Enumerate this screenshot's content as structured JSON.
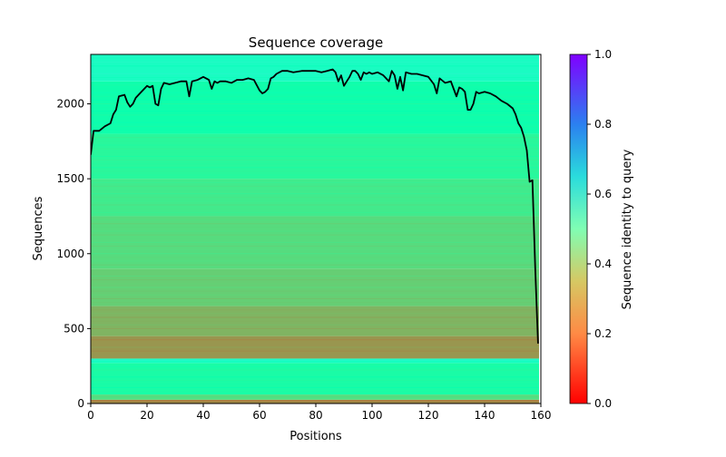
{
  "chart_data": {
    "type": "heatmap",
    "title": "Sequence coverage",
    "xlabel": "Positions",
    "ylabel": "Sequences",
    "xlim": [
      0,
      160
    ],
    "ylim": [
      0,
      2330
    ],
    "x_ticks": [
      "0",
      "20",
      "40",
      "60",
      "80",
      "100",
      "120",
      "140",
      "160"
    ],
    "y_ticks": [
      "0",
      "500",
      "1000",
      "1500",
      "2000"
    ],
    "colorbar": {
      "label": "Sequence identity to query",
      "range": [
        0.0,
        1.0
      ],
      "ticks": [
        "0.0",
        "0.2",
        "0.4",
        "0.6",
        "0.8",
        "1.0"
      ],
      "colormap": "rainbow_r"
    },
    "identity_bands": [
      {
        "y_from": 0,
        "y_to": 25,
        "identity": 0.17
      },
      {
        "y_from": 25,
        "y_to": 60,
        "identity": 0.33
      },
      {
        "y_from": 60,
        "y_to": 270,
        "identity": 0.45
      },
      {
        "y_from": 270,
        "y_to": 300,
        "identity": 0.55
      },
      {
        "y_from": 300,
        "y_to": 450,
        "identity": 0.2
      },
      {
        "y_from": 450,
        "y_to": 650,
        "identity": 0.25
      },
      {
        "y_from": 650,
        "y_to": 900,
        "identity": 0.3
      },
      {
        "y_from": 900,
        "y_to": 1250,
        "identity": 0.33
      },
      {
        "y_from": 1250,
        "y_to": 1500,
        "identity": 0.37
      },
      {
        "y_from": 1500,
        "y_to": 1800,
        "identity": 0.42
      },
      {
        "y_from": 1800,
        "y_to": 2150,
        "identity": 0.47
      },
      {
        "y_from": 2150,
        "y_to": 2330,
        "identity": 0.55
      }
    ],
    "coverage_line": {
      "name": "Coverage",
      "color": "#000000",
      "x": [
        0,
        1,
        3,
        5,
        7,
        8,
        9,
        10,
        12,
        13,
        14,
        15,
        16,
        18,
        19,
        20,
        21,
        22,
        23,
        24,
        25,
        26,
        28,
        30,
        32,
        34,
        35,
        36,
        38,
        40,
        41,
        42,
        43,
        44,
        45,
        46,
        48,
        50,
        52,
        54,
        56,
        58,
        60,
        61,
        62,
        63,
        64,
        65,
        66,
        68,
        70,
        72,
        75,
        78,
        80,
        82,
        84,
        86,
        87,
        88,
        89,
        90,
        91,
        92,
        93,
        94,
        95,
        96,
        97,
        98,
        99,
        100,
        102,
        104,
        106,
        107,
        108,
        109,
        110,
        111,
        112,
        114,
        116,
        118,
        120,
        122,
        123,
        124,
        126,
        128,
        129,
        130,
        131,
        132,
        133,
        134,
        135,
        136,
        137,
        138,
        140,
        142,
        144,
        146,
        148,
        150,
        151,
        152,
        153,
        154,
        155,
        156,
        157,
        158,
        159
      ],
      "y": [
        1660,
        1820,
        1820,
        1850,
        1870,
        1930,
        1960,
        2050,
        2060,
        2010,
        1980,
        2000,
        2040,
        2080,
        2100,
        2120,
        2110,
        2120,
        2000,
        1990,
        2100,
        2140,
        2130,
        2140,
        2150,
        2150,
        2050,
        2150,
        2160,
        2180,
        2170,
        2160,
        2100,
        2150,
        2140,
        2150,
        2150,
        2140,
        2160,
        2160,
        2170,
        2160,
        2090,
        2070,
        2080,
        2100,
        2170,
        2180,
        2200,
        2220,
        2220,
        2210,
        2220,
        2220,
        2220,
        2210,
        2220,
        2230,
        2210,
        2150,
        2190,
        2120,
        2150,
        2180,
        2220,
        2220,
        2200,
        2160,
        2210,
        2200,
        2210,
        2200,
        2210,
        2190,
        2150,
        2220,
        2190,
        2100,
        2180,
        2090,
        2210,
        2200,
        2200,
        2190,
        2180,
        2130,
        2070,
        2170,
        2140,
        2150,
        2100,
        2050,
        2110,
        2100,
        2080,
        1960,
        1960,
        2000,
        2080,
        2070,
        2080,
        2070,
        2050,
        2020,
        2000,
        1970,
        1930,
        1870,
        1840,
        1780,
        1690,
        1480,
        1490,
        900,
        400
      ]
    }
  }
}
